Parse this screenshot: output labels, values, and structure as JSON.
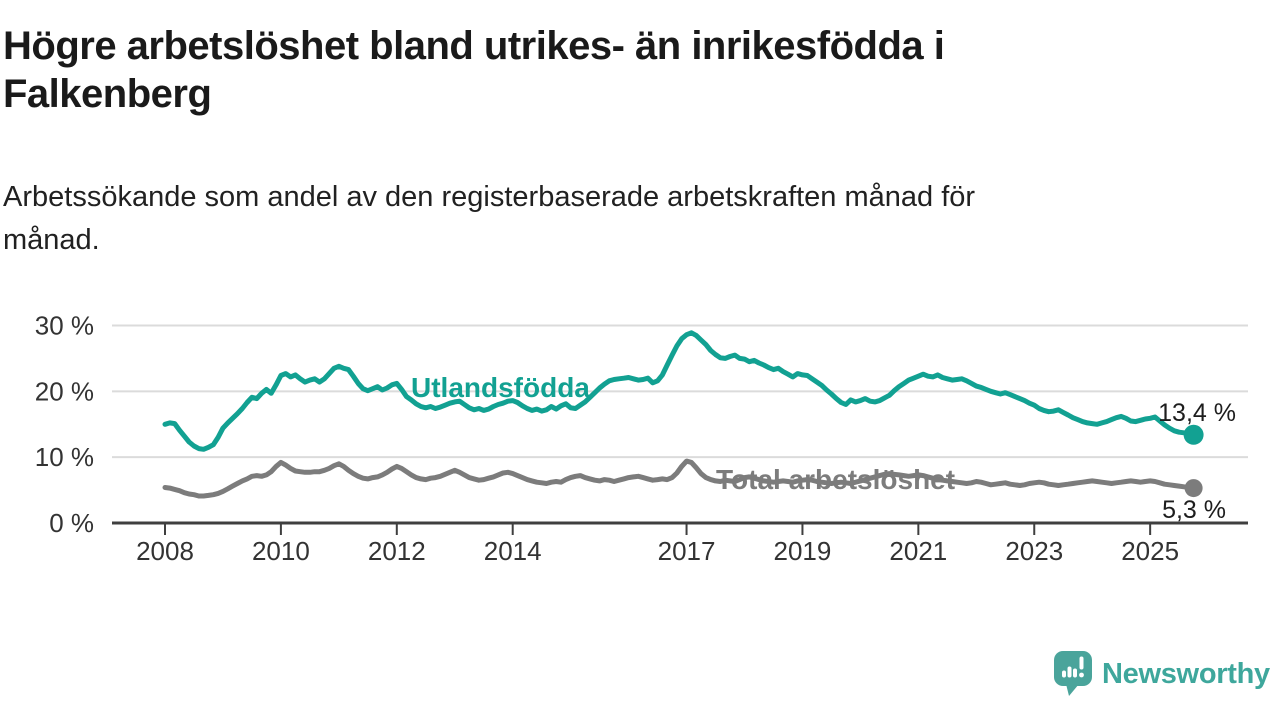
{
  "header": {
    "title": "Högre arbetslöshet bland utrikes- än inrikesfödda i Falkenberg",
    "title_lines": [
      "Högre arbetslöshet bland utrikes- än inrikesfödda i",
      "Falkenberg"
    ],
    "subtitle": "Arbetssökande som andel av den registerbaserade arbetskraften månad för månad.",
    "subtitle_lines": [
      "Arbetssökande som andel av den registerbaserade arbetskraften månad för",
      "månad."
    ]
  },
  "branding": {
    "logo_text": "Newsworthy",
    "logo_icon": "newsworthy-bubble-chart-icon",
    "wordmark_color": "#3EA79C",
    "icon_color": "#4AA49B"
  },
  "chart_data": {
    "type": "line",
    "unit": "%",
    "x_axis": {
      "ticks": [
        2008,
        2010,
        2012,
        2014,
        2017,
        2019,
        2021,
        2023,
        2025
      ],
      "tick_labels": [
        "2008",
        "2010",
        "2012",
        "2014",
        "2017",
        "2019",
        "2021",
        "2023",
        "2025"
      ],
      "range": [
        2007.1,
        2026.7
      ]
    },
    "y_axis": {
      "ticks": [
        0,
        10,
        20,
        30
      ],
      "tick_labels": [
        "0 %",
        "10 %",
        "20 %",
        "30 %"
      ],
      "range": [
        0,
        30
      ],
      "gridlines": true
    },
    "style": {
      "gridline_color": "#DBDBDB",
      "axis_color": "#3F3F3F",
      "tick_label_color": "#333333"
    },
    "legend_position": "inline-labels",
    "series": [
      {
        "name": "Utlandsfödda",
        "color": "#12A192",
        "start_year": 2008,
        "interval_months": 1,
        "end_value": 13.4,
        "end_label": "13,4 %",
        "values": [
          15.0,
          15.2,
          15.1,
          14.1,
          13.2,
          12.3,
          11.7,
          11.3,
          11.2,
          11.5,
          11.9,
          13.0,
          14.4,
          15.2,
          15.9,
          16.6,
          17.4,
          18.3,
          19.1,
          18.9,
          19.7,
          20.3,
          19.7,
          21.0,
          22.4,
          22.7,
          22.2,
          22.5,
          21.9,
          21.4,
          21.7,
          21.9,
          21.4,
          21.9,
          22.7,
          23.5,
          23.8,
          23.5,
          23.3,
          22.3,
          21.2,
          20.4,
          20.1,
          20.4,
          20.7,
          20.2,
          20.5,
          21.0,
          21.2,
          20.3,
          19.2,
          18.7,
          18.1,
          17.7,
          17.5,
          17.7,
          17.4,
          17.6,
          17.9,
          18.2,
          18.4,
          18.5,
          18.0,
          17.5,
          17.2,
          17.4,
          17.1,
          17.3,
          17.7,
          18.0,
          18.2,
          18.5,
          18.6,
          18.3,
          17.8,
          17.4,
          17.1,
          17.3,
          17.0,
          17.2,
          17.7,
          17.3,
          17.8,
          18.1,
          17.5,
          17.4,
          17.9,
          18.4,
          19.1,
          19.8,
          20.5,
          21.1,
          21.6,
          21.8,
          21.9,
          22.0,
          22.1,
          21.9,
          21.7,
          21.8,
          22.0,
          21.3,
          21.6,
          22.5,
          24.0,
          25.5,
          26.9,
          28.0,
          28.6,
          28.9,
          28.5,
          27.8,
          27.1,
          26.2,
          25.6,
          25.1,
          25.0,
          25.3,
          25.5,
          25.0,
          24.9,
          24.5,
          24.7,
          24.3,
          24.0,
          23.6,
          23.3,
          23.5,
          23.0,
          22.6,
          22.2,
          22.7,
          22.5,
          22.4,
          21.9,
          21.4,
          20.9,
          20.2,
          19.6,
          18.9,
          18.3,
          18.0,
          18.7,
          18.4,
          18.6,
          18.9,
          18.5,
          18.4,
          18.6,
          19.0,
          19.4,
          20.1,
          20.7,
          21.2,
          21.7,
          22.0,
          22.3,
          22.6,
          22.3,
          22.2,
          22.5,
          22.1,
          21.9,
          21.7,
          21.8,
          21.9,
          21.6,
          21.2,
          20.8,
          20.6,
          20.3,
          20.0,
          19.8,
          19.6,
          19.8,
          19.5,
          19.2,
          18.9,
          18.6,
          18.2,
          17.9,
          17.4,
          17.1,
          16.9,
          17.0,
          17.2,
          16.8,
          16.4,
          16.0,
          15.7,
          15.4,
          15.2,
          15.1,
          15.0,
          15.2,
          15.4,
          15.7,
          16.0,
          16.2,
          15.9,
          15.5,
          15.4,
          15.6,
          15.8,
          15.9,
          16.1,
          15.5,
          14.9,
          14.4,
          14.0,
          13.8,
          13.7,
          13.5,
          13.4
        ]
      },
      {
        "name": "Total arbetslöshet",
        "color": "#7C7C7C",
        "start_year": 2008,
        "interval_months": 1,
        "end_value": 5.3,
        "end_label": "5,3 %",
        "values": [
          5.4,
          5.3,
          5.1,
          4.9,
          4.6,
          4.4,
          4.3,
          4.1,
          4.1,
          4.2,
          4.3,
          4.5,
          4.8,
          5.2,
          5.6,
          6.0,
          6.4,
          6.7,
          7.1,
          7.2,
          7.1,
          7.3,
          7.8,
          8.6,
          9.2,
          8.8,
          8.3,
          7.9,
          7.8,
          7.7,
          7.7,
          7.8,
          7.8,
          8.0,
          8.3,
          8.7,
          9.0,
          8.6,
          8.0,
          7.5,
          7.1,
          6.8,
          6.7,
          6.9,
          7.0,
          7.3,
          7.7,
          8.2,
          8.6,
          8.3,
          7.8,
          7.3,
          6.9,
          6.7,
          6.6,
          6.8,
          6.9,
          7.1,
          7.4,
          7.7,
          8.0,
          7.7,
          7.3,
          6.9,
          6.7,
          6.5,
          6.6,
          6.8,
          7.0,
          7.3,
          7.6,
          7.7,
          7.5,
          7.2,
          6.9,
          6.6,
          6.4,
          6.2,
          6.1,
          6.0,
          6.2,
          6.3,
          6.2,
          6.6,
          6.9,
          7.1,
          7.2,
          6.9,
          6.7,
          6.5,
          6.4,
          6.6,
          6.5,
          6.3,
          6.5,
          6.7,
          6.9,
          7.0,
          7.1,
          6.9,
          6.7,
          6.5,
          6.6,
          6.7,
          6.6,
          6.9,
          7.6,
          8.6,
          9.4,
          9.2,
          8.4,
          7.5,
          6.9,
          6.6,
          6.4,
          6.3,
          6.5,
          6.4,
          6.3,
          6.6,
          6.9,
          7.0,
          6.8,
          6.6,
          6.4,
          6.3,
          6.2,
          6.3,
          6.4,
          6.3,
          6.2,
          6.4,
          6.5,
          6.6,
          6.5,
          6.3,
          6.2,
          6.1,
          6.0,
          6.1,
          6.2,
          6.1,
          6.0,
          6.2,
          6.4,
          6.6,
          6.8,
          7.0,
          7.2,
          7.4,
          7.5,
          7.4,
          7.3,
          7.2,
          7.1,
          7.2,
          7.3,
          7.2,
          7.0,
          6.8,
          6.7,
          6.5,
          6.4,
          6.3,
          6.2,
          6.1,
          6.0,
          6.1,
          6.3,
          6.2,
          6.0,
          5.8,
          5.9,
          6.0,
          6.1,
          5.9,
          5.8,
          5.7,
          5.8,
          6.0,
          6.1,
          6.2,
          6.1,
          5.9,
          5.8,
          5.7,
          5.8,
          5.9,
          6.0,
          6.1,
          6.2,
          6.3,
          6.4,
          6.3,
          6.2,
          6.1,
          6.0,
          6.1,
          6.2,
          6.3,
          6.4,
          6.3,
          6.2,
          6.3,
          6.4,
          6.3,
          6.1,
          5.9,
          5.8,
          5.7,
          5.6,
          5.5,
          5.4,
          5.3
        ]
      }
    ]
  }
}
